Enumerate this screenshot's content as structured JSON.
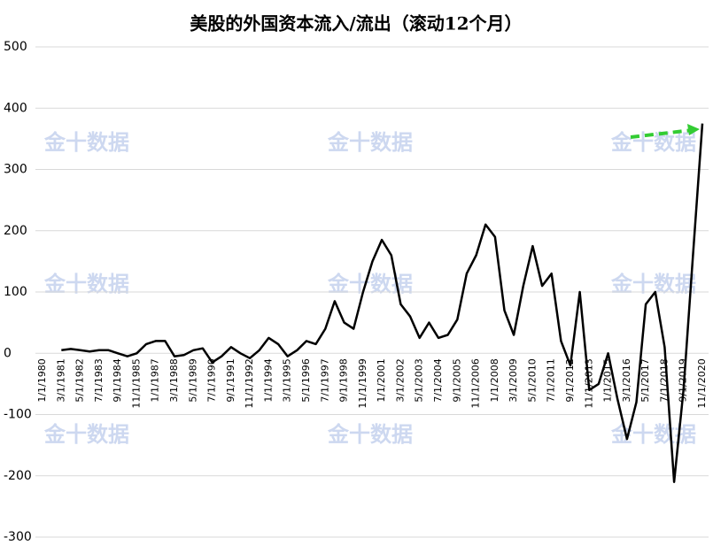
{
  "chart_data": {
    "type": "line",
    "title": "美股的外国资本流入/流出（滚动12个月）",
    "watermark": "金十数据",
    "categories": [
      "1/1/1980",
      null,
      "3/1/1981",
      null,
      "5/1/1982",
      null,
      "7/1/1983",
      null,
      "9/1/1984",
      null,
      "11/1/1985",
      null,
      "1/1/1987",
      null,
      "3/1/1988",
      null,
      "5/1/1989",
      null,
      "7/1/1990",
      null,
      "9/1/1991",
      null,
      "11/1/1992",
      null,
      "1/1/1994",
      null,
      "3/1/1995",
      null,
      "5/1/1996",
      null,
      "7/1/1997",
      null,
      "9/1/1998",
      null,
      "11/1/1999",
      null,
      "1/1/2001",
      null,
      "3/1/2002",
      null,
      "5/1/2003",
      null,
      "7/1/2004",
      null,
      "9/1/2005",
      null,
      "11/1/2006",
      null,
      "1/1/2008",
      null,
      "3/1/2009",
      null,
      "5/1/2010",
      null,
      "7/1/2011",
      null,
      "9/1/2012",
      null,
      "11/1/2013",
      null,
      "1/1/2015",
      null,
      "3/1/2016",
      null,
      "5/1/2017",
      null,
      "7/1/2018",
      null,
      "9/1/2019",
      null,
      "11/1/2020"
    ],
    "values": [
      null,
      null,
      5,
      7,
      5,
      3,
      5,
      5,
      0,
      -5,
      0,
      15,
      20,
      20,
      -5,
      -3,
      5,
      8,
      -15,
      -5,
      10,
      0,
      -8,
      5,
      25,
      15,
      -5,
      5,
      20,
      15,
      40,
      85,
      50,
      40,
      100,
      150,
      185,
      160,
      80,
      60,
      25,
      50,
      25,
      30,
      55,
      130,
      160,
      210,
      190,
      70,
      30,
      110,
      175,
      110,
      130,
      20,
      -20,
      100,
      -60,
      -50,
      0,
      -75,
      -140,
      -80,
      80,
      100,
      10,
      -210,
      -60,
      160,
      375
    ],
    "color": "#000000",
    "ylim": [
      -300,
      500
    ],
    "yticks": [
      -300,
      -200,
      -100,
      0,
      100,
      200,
      300,
      400,
      500
    ],
    "grid": true
  }
}
